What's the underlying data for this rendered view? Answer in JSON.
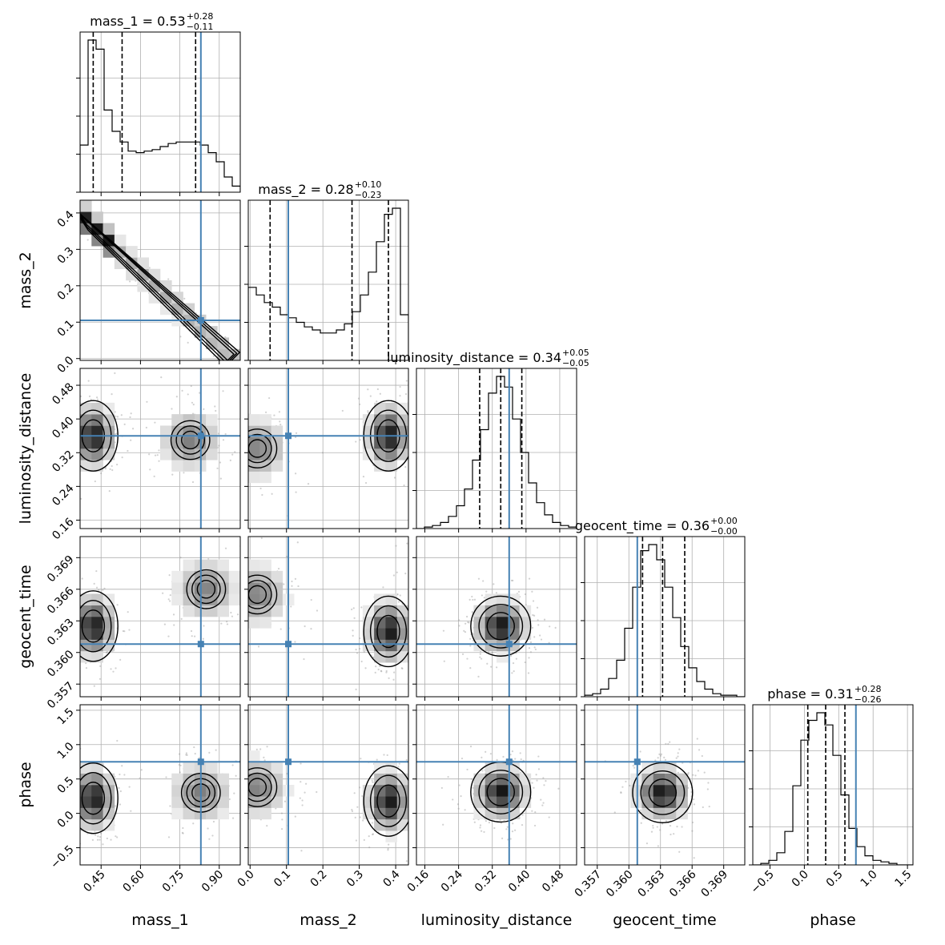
{
  "chart_data": {
    "type": "corner",
    "parameters": [
      {
        "name": "mass_1",
        "truth": 0.83,
        "range": [
          0.37,
          0.98
        ],
        "ticks": [
          0.45,
          0.6,
          0.75,
          0.9
        ],
        "tick_labels": [
          "0.45",
          "0.60",
          "0.75",
          "0.90"
        ],
        "median": 0.53,
        "plus": 0.28,
        "minus": 0.11,
        "quantiles": [
          0.42,
          0.53,
          0.81
        ],
        "title_prefix": "mass_1 = 0.53",
        "title_sup": "+0.28",
        "title_sub": "−0.11",
        "hist": [
          0.31,
          1.0,
          0.94,
          0.54,
          0.4,
          0.33,
          0.27,
          0.26,
          0.27,
          0.28,
          0.3,
          0.32,
          0.33,
          0.33,
          0.33,
          0.31,
          0.26,
          0.2,
          0.1,
          0.04
        ]
      },
      {
        "name": "mass_2",
        "truth": 0.105,
        "range": [
          -0.005,
          0.435
        ],
        "ticks": [
          0.0,
          0.1,
          0.2,
          0.3,
          0.4
        ],
        "tick_labels": [
          "0.0",
          "0.1",
          "0.2",
          "0.3",
          "0.4"
        ],
        "median": 0.28,
        "plus": 0.1,
        "minus": 0.23,
        "quantiles": [
          0.055,
          0.28,
          0.38
        ],
        "title_prefix": "mass_2 = 0.28",
        "title_sup": "+0.10",
        "title_sub": "−0.23",
        "hist": [
          0.48,
          0.43,
          0.38,
          0.35,
          0.3,
          0.28,
          0.25,
          0.22,
          0.2,
          0.18,
          0.18,
          0.2,
          0.24,
          0.32,
          0.43,
          0.58,
          0.78,
          0.96,
          1.0,
          0.3
        ]
      },
      {
        "name": "luminosity_distance",
        "truth": 0.36,
        "range": [
          0.14,
          0.52
        ],
        "ticks": [
          0.16,
          0.24,
          0.32,
          0.4,
          0.48
        ],
        "tick_labels": [
          "0.16",
          "0.24",
          "0.32",
          "0.40",
          "0.48"
        ],
        "median": 0.34,
        "plus": 0.05,
        "minus": 0.05,
        "quantiles": [
          0.29,
          0.34,
          0.39
        ],
        "title_prefix": "luminosity_distance = 0.34",
        "title_sup": "+0.05",
        "title_sub": "−0.05",
        "hist": [
          0.0,
          0.01,
          0.02,
          0.04,
          0.08,
          0.15,
          0.26,
          0.45,
          0.65,
          0.89,
          1.0,
          0.93,
          0.72,
          0.5,
          0.3,
          0.17,
          0.09,
          0.04,
          0.02,
          0.01
        ]
      },
      {
        "name": "geocent_time",
        "truth": 0.3608,
        "range": [
          0.3558,
          0.371
        ],
        "ticks": [
          0.357,
          0.36,
          0.363,
          0.366,
          0.369
        ],
        "tick_labels": [
          "0.357",
          "0.360",
          "0.363",
          "0.366",
          "0.369"
        ],
        "median": 0.36,
        "plus": 0.0,
        "minus": 0.0,
        "quantiles": [
          0.3613,
          0.3632,
          0.3653
        ],
        "title_prefix": "geocent_time = 0.36",
        "title_sup": "+0.00",
        "title_sub": "−0.00",
        "hist": [
          0.01,
          0.02,
          0.05,
          0.12,
          0.24,
          0.45,
          0.72,
          0.96,
          1.0,
          0.9,
          0.72,
          0.52,
          0.33,
          0.19,
          0.1,
          0.05,
          0.02,
          0.01,
          0.01,
          0.0
        ]
      },
      {
        "name": "phase",
        "truth": 0.75,
        "range": [
          -0.75,
          1.58
        ],
        "ticks": [
          -0.5,
          0.0,
          0.5,
          1.0,
          1.5
        ],
        "tick_labels": [
          "−0.5",
          "0.0",
          "0.5",
          "1.0",
          "1.5"
        ],
        "median": 0.31,
        "plus": 0.28,
        "minus": 0.26,
        "quantiles": [
          0.05,
          0.31,
          0.59
        ],
        "title_prefix": "phase = 0.31",
        "title_sup": "+0.28",
        "title_sub": "−0.26",
        "hist": [
          0.0,
          0.01,
          0.03,
          0.08,
          0.22,
          0.52,
          0.82,
          0.95,
          1.0,
          0.92,
          0.72,
          0.46,
          0.24,
          0.12,
          0.06,
          0.03,
          0.02,
          0.01,
          0.0,
          0.0
        ]
      }
    ],
    "pairs": [
      {
        "i": 1,
        "j": 0,
        "shape": "anticorrelated_band",
        "peak": [
          0.41,
          0.4
        ]
      },
      {
        "i": 2,
        "j": 0,
        "shape": "bimodal",
        "peak": [
          0.42,
          0.36
        ],
        "second": [
          0.79,
          0.35
        ]
      },
      {
        "i": 2,
        "j": 1,
        "shape": "bimodal",
        "peak": [
          0.38,
          0.36
        ],
        "second": [
          0.02,
          0.33
        ]
      },
      {
        "i": 3,
        "j": 0,
        "shape": "bimodal",
        "peak": [
          0.42,
          0.3625
        ],
        "second": [
          0.85,
          0.366
        ]
      },
      {
        "i": 3,
        "j": 1,
        "shape": "bimodal",
        "peak": [
          0.38,
          0.362
        ],
        "second": [
          0.02,
          0.3655
        ]
      },
      {
        "i": 3,
        "j": 2,
        "shape": "unimodal",
        "peak": [
          0.34,
          0.3625
        ]
      },
      {
        "i": 4,
        "j": 0,
        "shape": "bimodal",
        "peak": [
          0.42,
          0.22
        ],
        "second": [
          0.83,
          0.3
        ]
      },
      {
        "i": 4,
        "j": 1,
        "shape": "bimodal",
        "peak": [
          0.38,
          0.18
        ],
        "second": [
          0.02,
          0.38
        ]
      },
      {
        "i": 4,
        "j": 2,
        "shape": "unimodal",
        "peak": [
          0.34,
          0.31
        ]
      },
      {
        "i": 4,
        "j": 3,
        "shape": "unimodal",
        "peak": [
          0.3632,
          0.3
        ]
      }
    ],
    "grid": true,
    "truth_color": "#4682b4",
    "quantile_style": "dashed",
    "contour_color": "#000000"
  }
}
